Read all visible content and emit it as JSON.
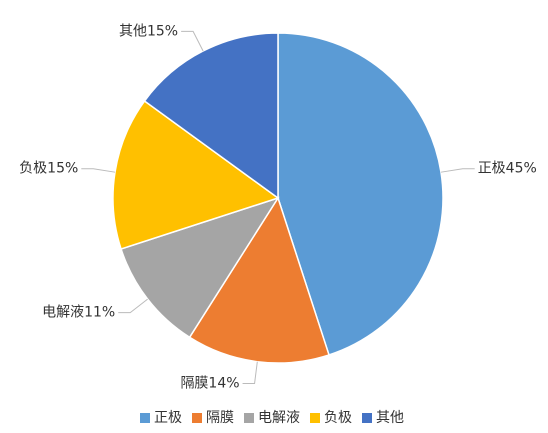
{
  "chart_data": {
    "type": "pie",
    "categories": [
      "正极",
      "隔膜",
      "电解液",
      "负极",
      "其他"
    ],
    "values": [
      45,
      14,
      11,
      15,
      15
    ],
    "value_labels": [
      "正极45%",
      "隔膜14%",
      "电解液11%",
      "负极15%",
      "其他15%"
    ],
    "colors": [
      "#5b9bd5",
      "#ed7d31",
      "#a5a5a5",
      "#ffc000",
      "#4472c4"
    ],
    "legend": "bottom"
  }
}
